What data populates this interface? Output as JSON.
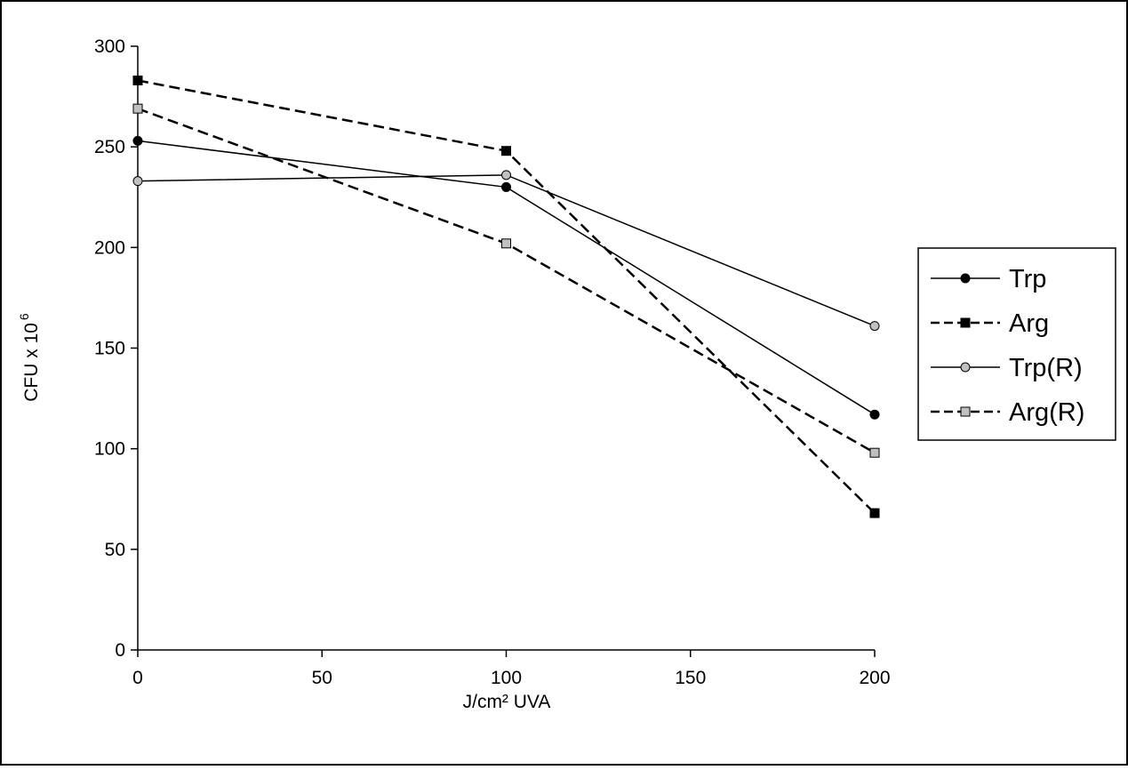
{
  "chart_data": {
    "type": "line",
    "title": "",
    "xlabel": "J/cm² UVA",
    "ylabel": "CFU x 10",
    "ylabel_superscript": "6",
    "xlim": [
      0,
      200
    ],
    "ylim": [
      0,
      300
    ],
    "x_ticks": [
      0,
      50,
      100,
      150,
      200
    ],
    "y_ticks": [
      0,
      50,
      100,
      150,
      200,
      250,
      300
    ],
    "grid": false,
    "legend_position": "right",
    "x": [
      0,
      100,
      200
    ],
    "series": [
      {
        "name": "Trp",
        "values": [
          253,
          230,
          117
        ],
        "line_style": "solid",
        "marker": "circle",
        "marker_color": "#000000"
      },
      {
        "name": "Arg",
        "values": [
          283,
          248,
          68
        ],
        "line_style": "dashed",
        "marker": "square",
        "marker_color": "#000000"
      },
      {
        "name": "Trp(R)",
        "values": [
          233,
          236,
          161
        ],
        "line_style": "solid",
        "marker": "circle",
        "marker_color": "#c0c0c0"
      },
      {
        "name": "Arg(R)",
        "values": [
          269,
          202,
          98
        ],
        "line_style": "dashed",
        "marker": "square",
        "marker_color": "#c0c0c0"
      }
    ]
  }
}
